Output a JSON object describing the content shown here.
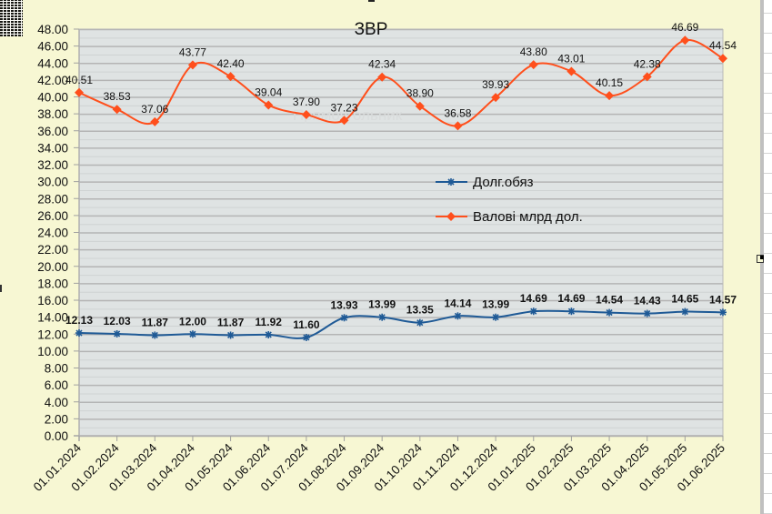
{
  "window": {
    "ghost_tooltip": "Прямоугольник"
  },
  "chart_data": {
    "type": "line",
    "title": "ЗВР",
    "xlabel": "",
    "ylabel": "",
    "ylim": [
      0,
      48
    ],
    "y_major_step": 2,
    "y_minor_step": 1,
    "y_tick_labels": [
      "0.00",
      "2.00",
      "4.00",
      "6.00",
      "8.00",
      "10.00",
      "12.00",
      "14.00",
      "16.00",
      "18.00",
      "20.00",
      "22.00",
      "24.00",
      "26.00",
      "28.00",
      "30.00",
      "32.00",
      "34.00",
      "36.00",
      "38.00",
      "40.00",
      "42.00",
      "44.00",
      "46.00",
      "48.00"
    ],
    "grid": true,
    "smooth": true,
    "legend_position": "center-right",
    "categories": [
      "01.01.2024",
      "01.02.2024",
      "01.03.2024",
      "01.04.2024",
      "01.05.2024",
      "01.06.2024",
      "01.07.2024",
      "01.08.2024",
      "01.09.2024",
      "01.10.2024",
      "01.11.2024",
      "01.12.2024",
      "01.01.2025",
      "01.02.2025",
      "01.03.2025",
      "01.04.2025",
      "01.05.2025",
      "01.06.2025"
    ],
    "series": [
      {
        "name": "Долг.обяз",
        "color": "#1f5a96",
        "marker": "asterisk",
        "label_bold": true,
        "values": [
          12.13,
          12.03,
          11.87,
          12.0,
          11.87,
          11.92,
          11.6,
          13.93,
          13.99,
          13.35,
          14.14,
          13.99,
          14.69,
          14.69,
          14.54,
          14.43,
          14.65,
          14.57
        ],
        "labels": [
          "12.13",
          "12.03",
          "11.87",
          "12.00",
          "11.87",
          "11.92",
          "11.60",
          "13.93",
          "13.99",
          "13.35",
          "14.14",
          "13.99",
          "14.69",
          "14.69",
          "14.54",
          "14.43",
          "14.65",
          "14.57"
        ]
      },
      {
        "name": "Валові млрд дол.",
        "color": "#ff4f1c",
        "marker": "diamond",
        "label_bold": false,
        "values": [
          40.51,
          38.53,
          37.06,
          43.77,
          42.4,
          39.04,
          37.9,
          37.23,
          42.34,
          38.9,
          36.58,
          39.93,
          43.8,
          43.01,
          40.15,
          42.38,
          46.69,
          44.54
        ],
        "labels": [
          "40.51",
          "38.53",
          "37.06",
          "43.77",
          "42.40",
          "39.04",
          "37.90",
          "37.23",
          "42.34",
          "38.90",
          "36.58",
          "39.93",
          "43.80",
          "43.01",
          "40.15",
          "42.38",
          "46.69",
          "44.54"
        ]
      }
    ]
  },
  "colors": {
    "chart_background": "#f7f7d3",
    "plot_background": "#dfe3e3",
    "major_grid": "#b4b4b4",
    "minor_grid": "#cfd3d3"
  }
}
